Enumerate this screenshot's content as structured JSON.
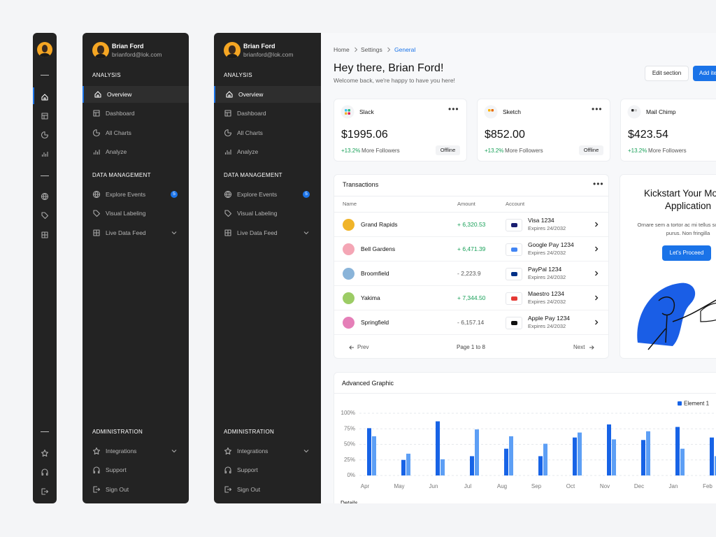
{
  "user": {
    "name": "Brian Ford",
    "email": "brianford@lok.com"
  },
  "nav": {
    "sections": [
      {
        "title": "ANALYSIS",
        "items": [
          {
            "label": "Overview"
          },
          {
            "label": "Dashboard"
          },
          {
            "label": "All Charts"
          },
          {
            "label": "Analyze"
          }
        ]
      },
      {
        "title": "DATA MANAGEMENT",
        "items": [
          {
            "label": "Explore Events",
            "badge": 5
          },
          {
            "label": "Visual Labeling"
          },
          {
            "label": "Live Data Feed"
          }
        ]
      },
      {
        "title": "ADMINISTRATION",
        "items": [
          {
            "label": "Integrations"
          },
          {
            "label": "Support"
          },
          {
            "label": "Sign Out"
          }
        ]
      }
    ]
  },
  "breadcrumb": [
    "Home",
    "Settings",
    "General"
  ],
  "header": {
    "title": "Hey there, Brian Ford!",
    "subtitle": "Welcome back, we're happy to have you here!",
    "actions": [
      "Edit section",
      "Add item"
    ]
  },
  "cards": [
    {
      "name": "Slack",
      "amount": "$1995.06",
      "change": "+13.2%",
      "change_label": "More Followers",
      "status": "Offline"
    },
    {
      "name": "Sketch",
      "amount": "$852.00",
      "change": "+13.2%",
      "change_label": "More Followers",
      "status": "Offline"
    },
    {
      "name": "Mail Chimp",
      "amount": "$423.54",
      "change": "+13.2%",
      "change_label": "More Followers"
    }
  ],
  "transactions": {
    "title": "Transactions",
    "columns": [
      "Name",
      "Amount",
      "Account"
    ],
    "rows": [
      {
        "name": "Grand Rapids",
        "amount": "+ 6,320.53",
        "account": "Visa 1234",
        "expires": "Expires 24/2032"
      },
      {
        "name": "Bell Gardens",
        "amount": "+ 6,471.39",
        "account": "Google Pay 1234",
        "expires": "Expires 24/2032"
      },
      {
        "name": "Broomfield",
        "amount": "- 2,223.9",
        "account": "PayPal 1234",
        "expires": "Expires 24/2032"
      },
      {
        "name": "Yakima",
        "amount": "+ 7,344.50",
        "account": "Maestro 1234",
        "expires": "Expires 24/2032"
      },
      {
        "name": "Springfield",
        "amount": "- 6,157.14",
        "account": "Apple Pay 1234",
        "expires": "Expires 24/2032"
      }
    ],
    "pagination": {
      "prev": "Prev",
      "page": "Page 1 to 8",
      "next": "Next"
    }
  },
  "promo": {
    "title": "Kickstart Your Mobile Application",
    "text": "Ornare sem a tortor ac mi tellus scelerisque purus. Non fringilla",
    "button": "Let's Proceed"
  },
  "chart_data": {
    "type": "bar",
    "title": "Advanced Graphic",
    "categories": [
      "Apr",
      "May",
      "Jun",
      "Jul",
      "Aug",
      "Sep",
      "Oct",
      "Nov",
      "Dec",
      "Jan",
      "Feb"
    ],
    "series": [
      {
        "name": "Element 1",
        "color": "#1763e6",
        "values": [
          76,
          25,
          87,
          31,
          43,
          31,
          61,
          82,
          57,
          78,
          61
        ]
      },
      {
        "color": "#5d9ff5",
        "values": [
          63,
          35,
          26,
          74,
          63,
          51,
          69,
          58,
          71,
          43,
          31
        ]
      }
    ],
    "ylim": [
      0,
      100
    ],
    "yticks": [
      {
        "value": 0,
        "label": "0%"
      },
      {
        "value": 25,
        "label": "25%"
      },
      {
        "value": 50,
        "label": "50%"
      },
      {
        "value": 75,
        "label": "75%"
      },
      {
        "value": 100,
        "label": "100%"
      }
    ],
    "grid": true,
    "legend": "top-right"
  },
  "footer_section": "Details"
}
